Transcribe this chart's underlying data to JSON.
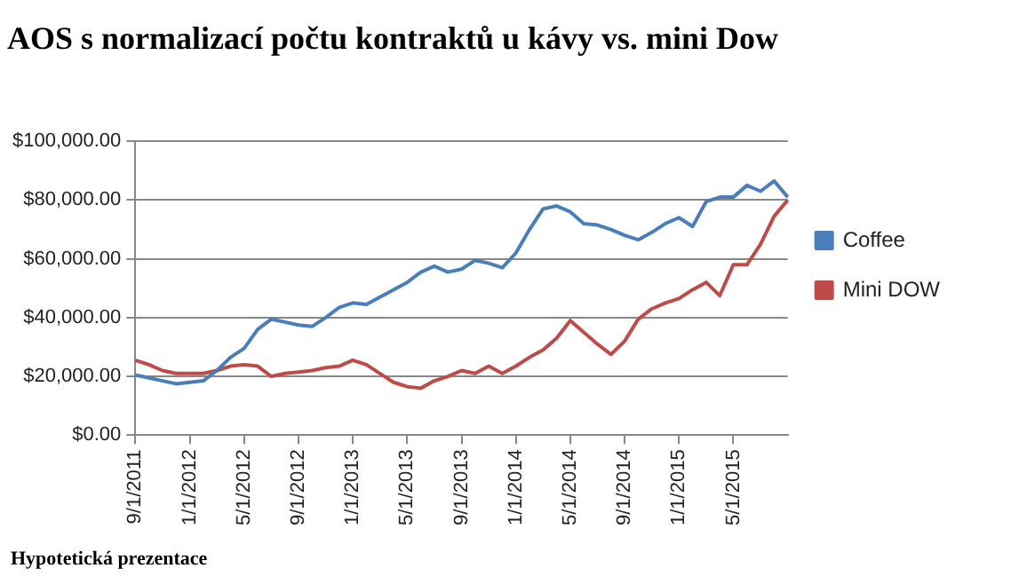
{
  "chart_data": {
    "type": "line",
    "title": "AOS s normalizací počtu kontraktů u kávy vs. mini Dow",
    "categories": [
      "9/1/2011",
      null,
      null,
      null,
      "1/1/2012",
      null,
      null,
      null,
      "5/1/2012",
      null,
      null,
      null,
      "9/1/2012",
      null,
      null,
      null,
      "1/1/2013",
      null,
      null,
      null,
      "5/1/2013",
      null,
      null,
      null,
      "9/1/2013",
      null,
      null,
      null,
      "1/1/2014",
      null,
      null,
      null,
      "5/1/2014",
      null,
      null,
      null,
      "9/1/2014",
      null,
      null,
      null,
      "1/1/2015",
      null,
      null,
      null,
      "5/1/2015",
      null,
      null,
      null,
      null
    ],
    "series": [
      {
        "name": "Coffee",
        "color": "#4a7ebb",
        "values": [
          20500,
          19500,
          18500,
          17500,
          18000,
          18500,
          22000,
          26500,
          29500,
          36000,
          39500,
          38500,
          37500,
          37000,
          40000,
          43500,
          45000,
          44500,
          47000,
          49500,
          52000,
          55500,
          57500,
          55500,
          56500,
          59500,
          58500,
          57000,
          62000,
          70000,
          77000,
          78000,
          76000,
          72000,
          71500,
          70000,
          68000,
          66500,
          69000,
          72000,
          74000,
          71000,
          79500,
          81000,
          81000,
          85000,
          83000,
          86500,
          81000
        ]
      },
      {
        "name": "Mini DOW",
        "color": "#be4b48",
        "values": [
          25500,
          24000,
          22000,
          21000,
          21000,
          21000,
          22000,
          23500,
          24000,
          23500,
          20000,
          21000,
          21500,
          22000,
          23000,
          23500,
          25500,
          24000,
          21000,
          18000,
          16500,
          16000,
          18500,
          20000,
          22000,
          21000,
          23500,
          21000,
          23500,
          26500,
          29000,
          33000,
          39000,
          35000,
          31000,
          27500,
          32000,
          39500,
          43000,
          45000,
          46500,
          49500,
          52000,
          47500,
          58000,
          58000,
          65000,
          74500,
          80000
        ]
      }
    ],
    "ylim": [
      0,
      100000
    ],
    "yticks": [
      {
        "value": 0,
        "label": "$0.00"
      },
      {
        "value": 20000,
        "label": "$20,000.00"
      },
      {
        "value": 40000,
        "label": "$40,000.00"
      },
      {
        "value": 60000,
        "label": "$60,000.00"
      },
      {
        "value": 80000,
        "label": "$80,000.00"
      },
      {
        "value": 100000,
        "label": "$100,000.00"
      }
    ],
    "grid": "y",
    "legend": "right",
    "marker": "none",
    "line_style": "solid",
    "annotations": [
      "Hypotetická prezentace"
    ]
  }
}
